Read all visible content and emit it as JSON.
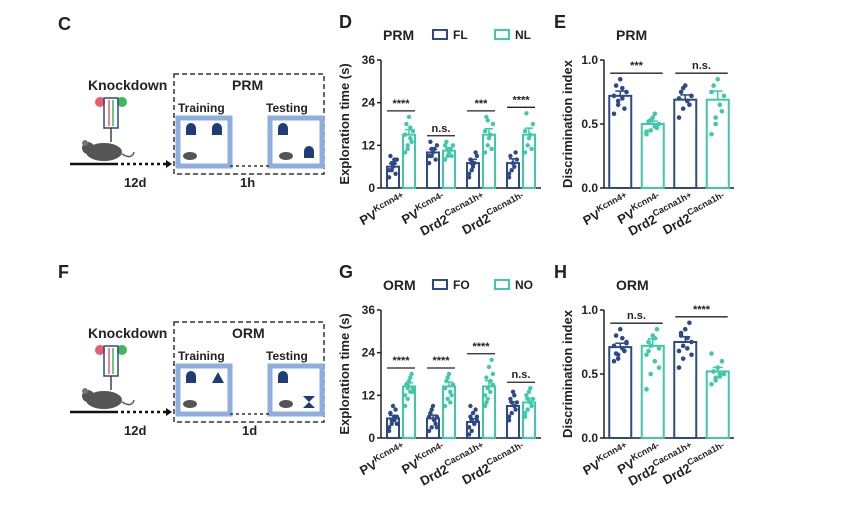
{
  "colors": {
    "blue": "#2d4a86",
    "teal": "#3ec9a8",
    "scheme_blue": "#8faee0",
    "dark": "#222222"
  },
  "panels": {
    "C": "C",
    "D": "D",
    "E": "E",
    "F": "F",
    "G": "G",
    "H": "H"
  },
  "schematic_top": {
    "knockdown": "Knockdown",
    "box_title": "PRM",
    "training": "Training",
    "testing": "Testing",
    "interval": "1h",
    "days": "12d"
  },
  "schematic_bottom": {
    "knockdown": "Knockdown",
    "box_title": "ORM",
    "training": "Training",
    "testing": "Testing",
    "interval": "1d",
    "days": "12d"
  },
  "chart_data": [
    {
      "id": "D",
      "type": "bar",
      "title": "PRM",
      "ylabel": "Exploration time (s)",
      "ylim": [
        0,
        36
      ],
      "yticks": [
        0,
        12,
        24,
        36
      ],
      "legend": [
        {
          "name": "FL",
          "color": "#2d4a86"
        },
        {
          "name": "NL",
          "color": "#3ec9a8"
        }
      ],
      "groups": [
        {
          "label": "PV",
          "sup": "Kcnn4+",
          "values": [
            6,
            15
          ],
          "points": [
            [
              3,
              5,
              7,
              8,
              9,
              6,
              4,
              5,
              7,
              8
            ],
            [
              10,
              12,
              14,
              16,
              18,
              20,
              13,
              15,
              11,
              17
            ]
          ]
        },
        {
          "label": "PV",
          "sup": "Kcnn4-",
          "values": [
            10,
            10.5
          ],
          "points": [
            [
              7,
              9,
              11,
              12,
              13,
              10,
              8,
              9,
              11
            ],
            [
              8,
              9,
              11,
              12,
              13,
              10,
              9,
              12,
              11
            ]
          ]
        },
        {
          "label": "Drd2",
          "sup": "Cacna1h+",
          "values": [
            7,
            15
          ],
          "points": [
            [
              3,
              5,
              7,
              9,
              8,
              6,
              10,
              4,
              7
            ],
            [
              10,
              12,
              15,
              18,
              20,
              14,
              11,
              16,
              19
            ]
          ]
        },
        {
          "label": "Drd2",
          "sup": "Cacna1h-",
          "values": [
            7,
            15
          ],
          "points": [
            [
              3,
              5,
              6,
              8,
              9,
              7,
              10,
              4
            ],
            [
              10,
              12,
              15,
              18,
              21,
              14,
              11,
              16
            ]
          ]
        }
      ],
      "significance": [
        {
          "group": 0,
          "label": "****"
        },
        {
          "group": 1,
          "label": "n.s."
        },
        {
          "group": 2,
          "label": "***"
        },
        {
          "group": 3,
          "label": "****"
        }
      ]
    },
    {
      "id": "E",
      "type": "bar",
      "title": "PRM",
      "ylabel": "Discrimination index",
      "ylim": [
        0,
        1.0
      ],
      "yticks": [
        0.0,
        0.5,
        1.0
      ],
      "categories": [
        {
          "label": "PV",
          "sup": "Kcnn4+"
        },
        {
          "label": "PV",
          "sup": "Kcnn4-"
        },
        {
          "label": "Drd2",
          "sup": "Cacna1h+"
        },
        {
          "label": "Drd2",
          "sup": "Cacna1h-"
        }
      ],
      "values": [
        0.72,
        0.5,
        0.69,
        0.69
      ],
      "colors": [
        "#2d4a86",
        "#3ec9a8",
        "#2d4a86",
        "#3ec9a8"
      ],
      "points": [
        [
          0.58,
          0.65,
          0.7,
          0.75,
          0.8,
          0.85,
          0.62,
          0.72,
          0.68,
          0.78
        ],
        [
          0.42,
          0.45,
          0.48,
          0.5,
          0.52,
          0.55,
          0.47,
          0.44,
          0.53,
          0.58
        ],
        [
          0.55,
          0.62,
          0.68,
          0.72,
          0.75,
          0.8,
          0.65,
          0.7,
          0.78
        ],
        [
          0.42,
          0.55,
          0.65,
          0.72,
          0.8,
          0.85,
          0.6,
          0.75,
          0.5
        ]
      ],
      "significance": [
        {
          "from": 0,
          "to": 1,
          "label": "***"
        },
        {
          "from": 2,
          "to": 3,
          "label": "n.s."
        }
      ]
    },
    {
      "id": "G",
      "type": "bar",
      "title": "ORM",
      "ylabel": "Exploration time (s)",
      "ylim": [
        0,
        36
      ],
      "yticks": [
        0,
        12,
        24,
        36
      ],
      "legend": [
        {
          "name": "FO",
          "color": "#2d4a86"
        },
        {
          "name": "NO",
          "color": "#3ec9a8"
        }
      ],
      "groups": [
        {
          "label": "PV",
          "sup": "Kcnn4+",
          "values": [
            5.5,
            14.5
          ],
          "points": [
            [
              2,
              4,
              5,
              6,
              7,
              9,
              8,
              3,
              5,
              6,
              4,
              7
            ],
            [
              9,
              11,
              13,
              14,
              15,
              16,
              18,
              12,
              14,
              17,
              13,
              15
            ]
          ]
        },
        {
          "label": "PV",
          "sup": "Kcnn4-",
          "values": [
            5.5,
            14.5
          ],
          "points": [
            [
              2,
              3,
              5,
              6,
              7,
              9,
              4,
              6,
              8,
              5,
              3
            ],
            [
              9,
              11,
              13,
              15,
              16,
              18,
              12,
              14,
              17,
              10,
              15
            ]
          ]
        },
        {
          "label": "Drd2",
          "sup": "Cacna1h+",
          "values": [
            4.5,
            14.5
          ],
          "points": [
            [
              1,
              2,
              4,
              5,
              6,
              7,
              8,
              3,
              5,
              4,
              6,
              9
            ],
            [
              9,
              11,
              13,
              15,
              17,
              20,
              22,
              12,
              14,
              16,
              18,
              10
            ]
          ]
        },
        {
          "label": "Drd2",
          "sup": "Cacna1h-",
          "values": [
            9,
            10
          ],
          "points": [
            [
              5,
              7,
              9,
              10,
              11,
              13,
              8,
              6,
              10,
              12
            ],
            [
              6,
              8,
              10,
              11,
              12,
              13,
              9,
              7,
              11,
              14
            ]
          ]
        }
      ],
      "significance": [
        {
          "group": 0,
          "label": "****"
        },
        {
          "group": 1,
          "label": "****"
        },
        {
          "group": 2,
          "label": "****"
        },
        {
          "group": 3,
          "label": "n.s."
        }
      ]
    },
    {
      "id": "H",
      "type": "bar",
      "title": "ORM",
      "ylabel": "Discrimination index",
      "ylim": [
        0,
        1.0
      ],
      "yticks": [
        0.0,
        0.5,
        1.0
      ],
      "categories": [
        {
          "label": "PV",
          "sup": "Kcnn4+"
        },
        {
          "label": "PV",
          "sup": "Kcnn4-"
        },
        {
          "label": "Drd2",
          "sup": "Cacna1h+"
        },
        {
          "label": "Drd2",
          "sup": "Cacna1h-"
        }
      ],
      "values": [
        0.71,
        0.72,
        0.75,
        0.52
      ],
      "colors": [
        "#2d4a86",
        "#3ec9a8",
        "#2d4a86",
        "#3ec9a8"
      ],
      "points": [
        [
          0.6,
          0.65,
          0.7,
          0.75,
          0.8,
          0.85,
          0.68,
          0.72,
          0.62,
          0.78,
          0.74,
          0.66
        ],
        [
          0.38,
          0.5,
          0.6,
          0.7,
          0.75,
          0.8,
          0.85,
          0.65,
          0.72,
          0.78,
          0.55,
          0.68
        ],
        [
          0.55,
          0.62,
          0.7,
          0.75,
          0.8,
          0.85,
          0.9,
          0.68,
          0.72,
          0.78,
          0.65,
          0.82
        ],
        [
          0.42,
          0.45,
          0.48,
          0.5,
          0.52,
          0.55,
          0.6,
          0.66,
          0.47,
          0.5
        ]
      ],
      "significance": [
        {
          "from": 0,
          "to": 1,
          "label": "n.s."
        },
        {
          "from": 2,
          "to": 3,
          "label": "****"
        }
      ]
    }
  ]
}
